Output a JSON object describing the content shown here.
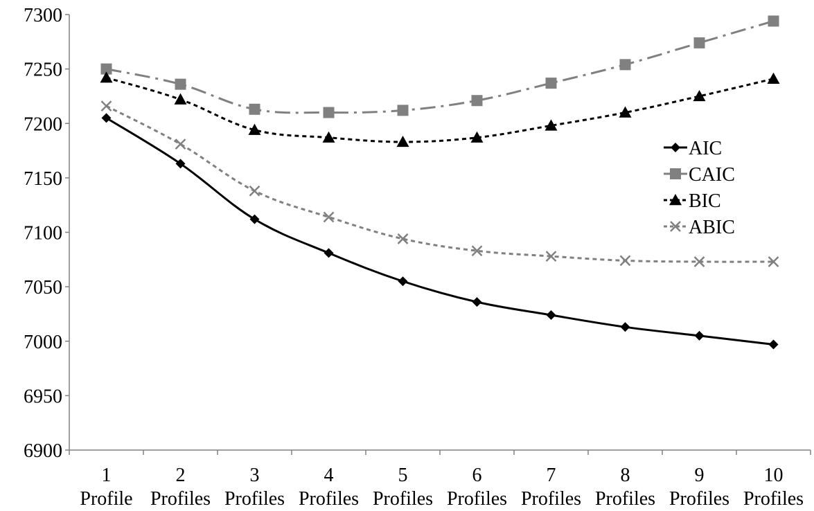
{
  "chart_data": {
    "type": "line",
    "title": "",
    "xlabel": "",
    "ylabel": "",
    "categories": [
      [
        "1",
        "Profile"
      ],
      [
        "2",
        "Profiles"
      ],
      [
        "3",
        "Profiles"
      ],
      [
        "4",
        "Profiles"
      ],
      [
        "5",
        "Profiles"
      ],
      [
        "6",
        "Profiles"
      ],
      [
        "7",
        "Profiles"
      ],
      [
        "8",
        "Profiles"
      ],
      [
        "9",
        "Profiles"
      ],
      [
        "10",
        "Profiles"
      ]
    ],
    "ylim": [
      6900,
      7300
    ],
    "yticks": [
      6900,
      6950,
      7000,
      7050,
      7100,
      7150,
      7200,
      7250,
      7300
    ],
    "grid": false,
    "legend_position": "right",
    "series": [
      {
        "name": "AIC",
        "values": [
          7205,
          7163,
          7112,
          7081,
          7055,
          7036,
          7024,
          7013,
          7005,
          6997
        ],
        "color": "#000000",
        "marker": "diamond",
        "dash": "solid"
      },
      {
        "name": "CAIC",
        "values": [
          7250,
          7236,
          7213,
          7210,
          7212,
          7221,
          7237,
          7254,
          7274,
          7294
        ],
        "color": "#808080",
        "marker": "square",
        "dash": "long-dash-dot"
      },
      {
        "name": "BIC",
        "values": [
          7242,
          7222,
          7194,
          7187,
          7183,
          7187,
          7198,
          7210,
          7225,
          7241
        ],
        "color": "#000000",
        "marker": "triangle",
        "dash": "short-dash"
      },
      {
        "name": "ABIC",
        "values": [
          7216,
          7181,
          7138,
          7114,
          7094,
          7083,
          7078,
          7074,
          7073,
          7073
        ],
        "color": "#808080",
        "marker": "x",
        "dash": "short-dash"
      }
    ]
  }
}
